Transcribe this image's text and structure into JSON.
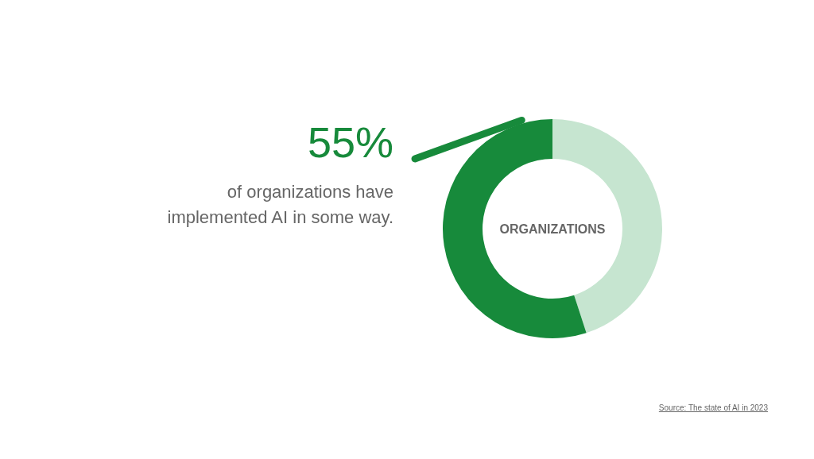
{
  "chart_data": {
    "type": "donut",
    "title": "ORGANIZATIONS",
    "categories": [
      null,
      null
    ],
    "values": [
      45,
      55
    ],
    "colors": [
      "#c6e5d0",
      "#178a3b"
    ],
    "value_labels": [
      null,
      "55%"
    ],
    "annotations": [
      "of organizations have implemented AI in some way.",
      "Source: The state of AI in 2023"
    ]
  }
}
